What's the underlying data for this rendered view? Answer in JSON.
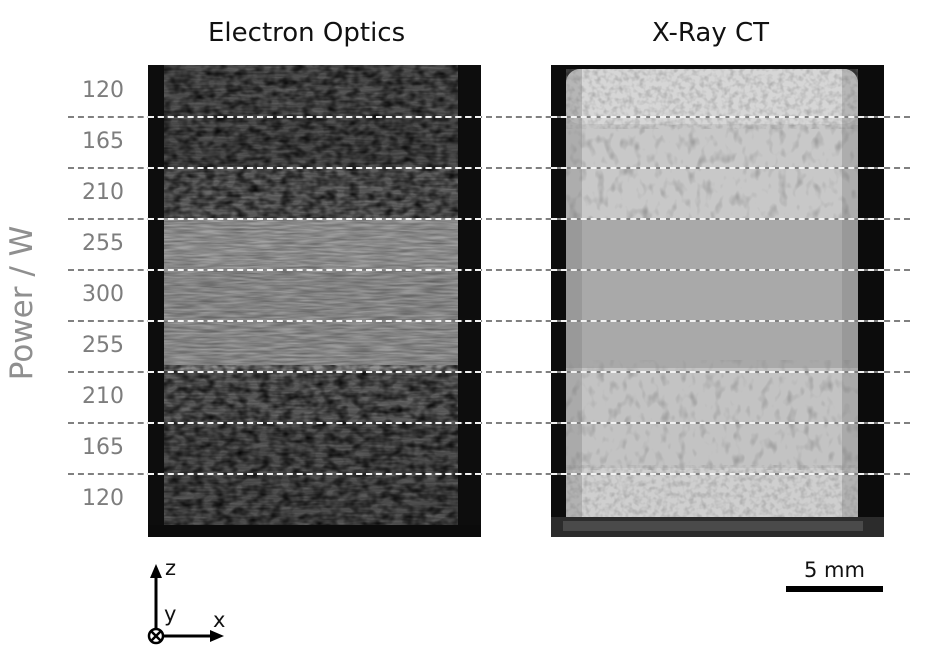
{
  "panels": [
    {
      "title": "Electron Optics"
    },
    {
      "title": "X-Ray CT"
    }
  ],
  "y_axis_label": "Power / W",
  "power_levels": [
    "120",
    "165",
    "210",
    "255",
    "300",
    "255",
    "210",
    "165",
    "120"
  ],
  "scale_bar": {
    "label": "5 mm"
  },
  "axes_triad": {
    "z": "z",
    "y": "y",
    "x": "x"
  },
  "colors": {
    "ylabel": "#8f8f8f",
    "row_labels": "#7d7d7d",
    "dash_outside": "#808080",
    "dash_inside": "#f2f2f2"
  }
}
